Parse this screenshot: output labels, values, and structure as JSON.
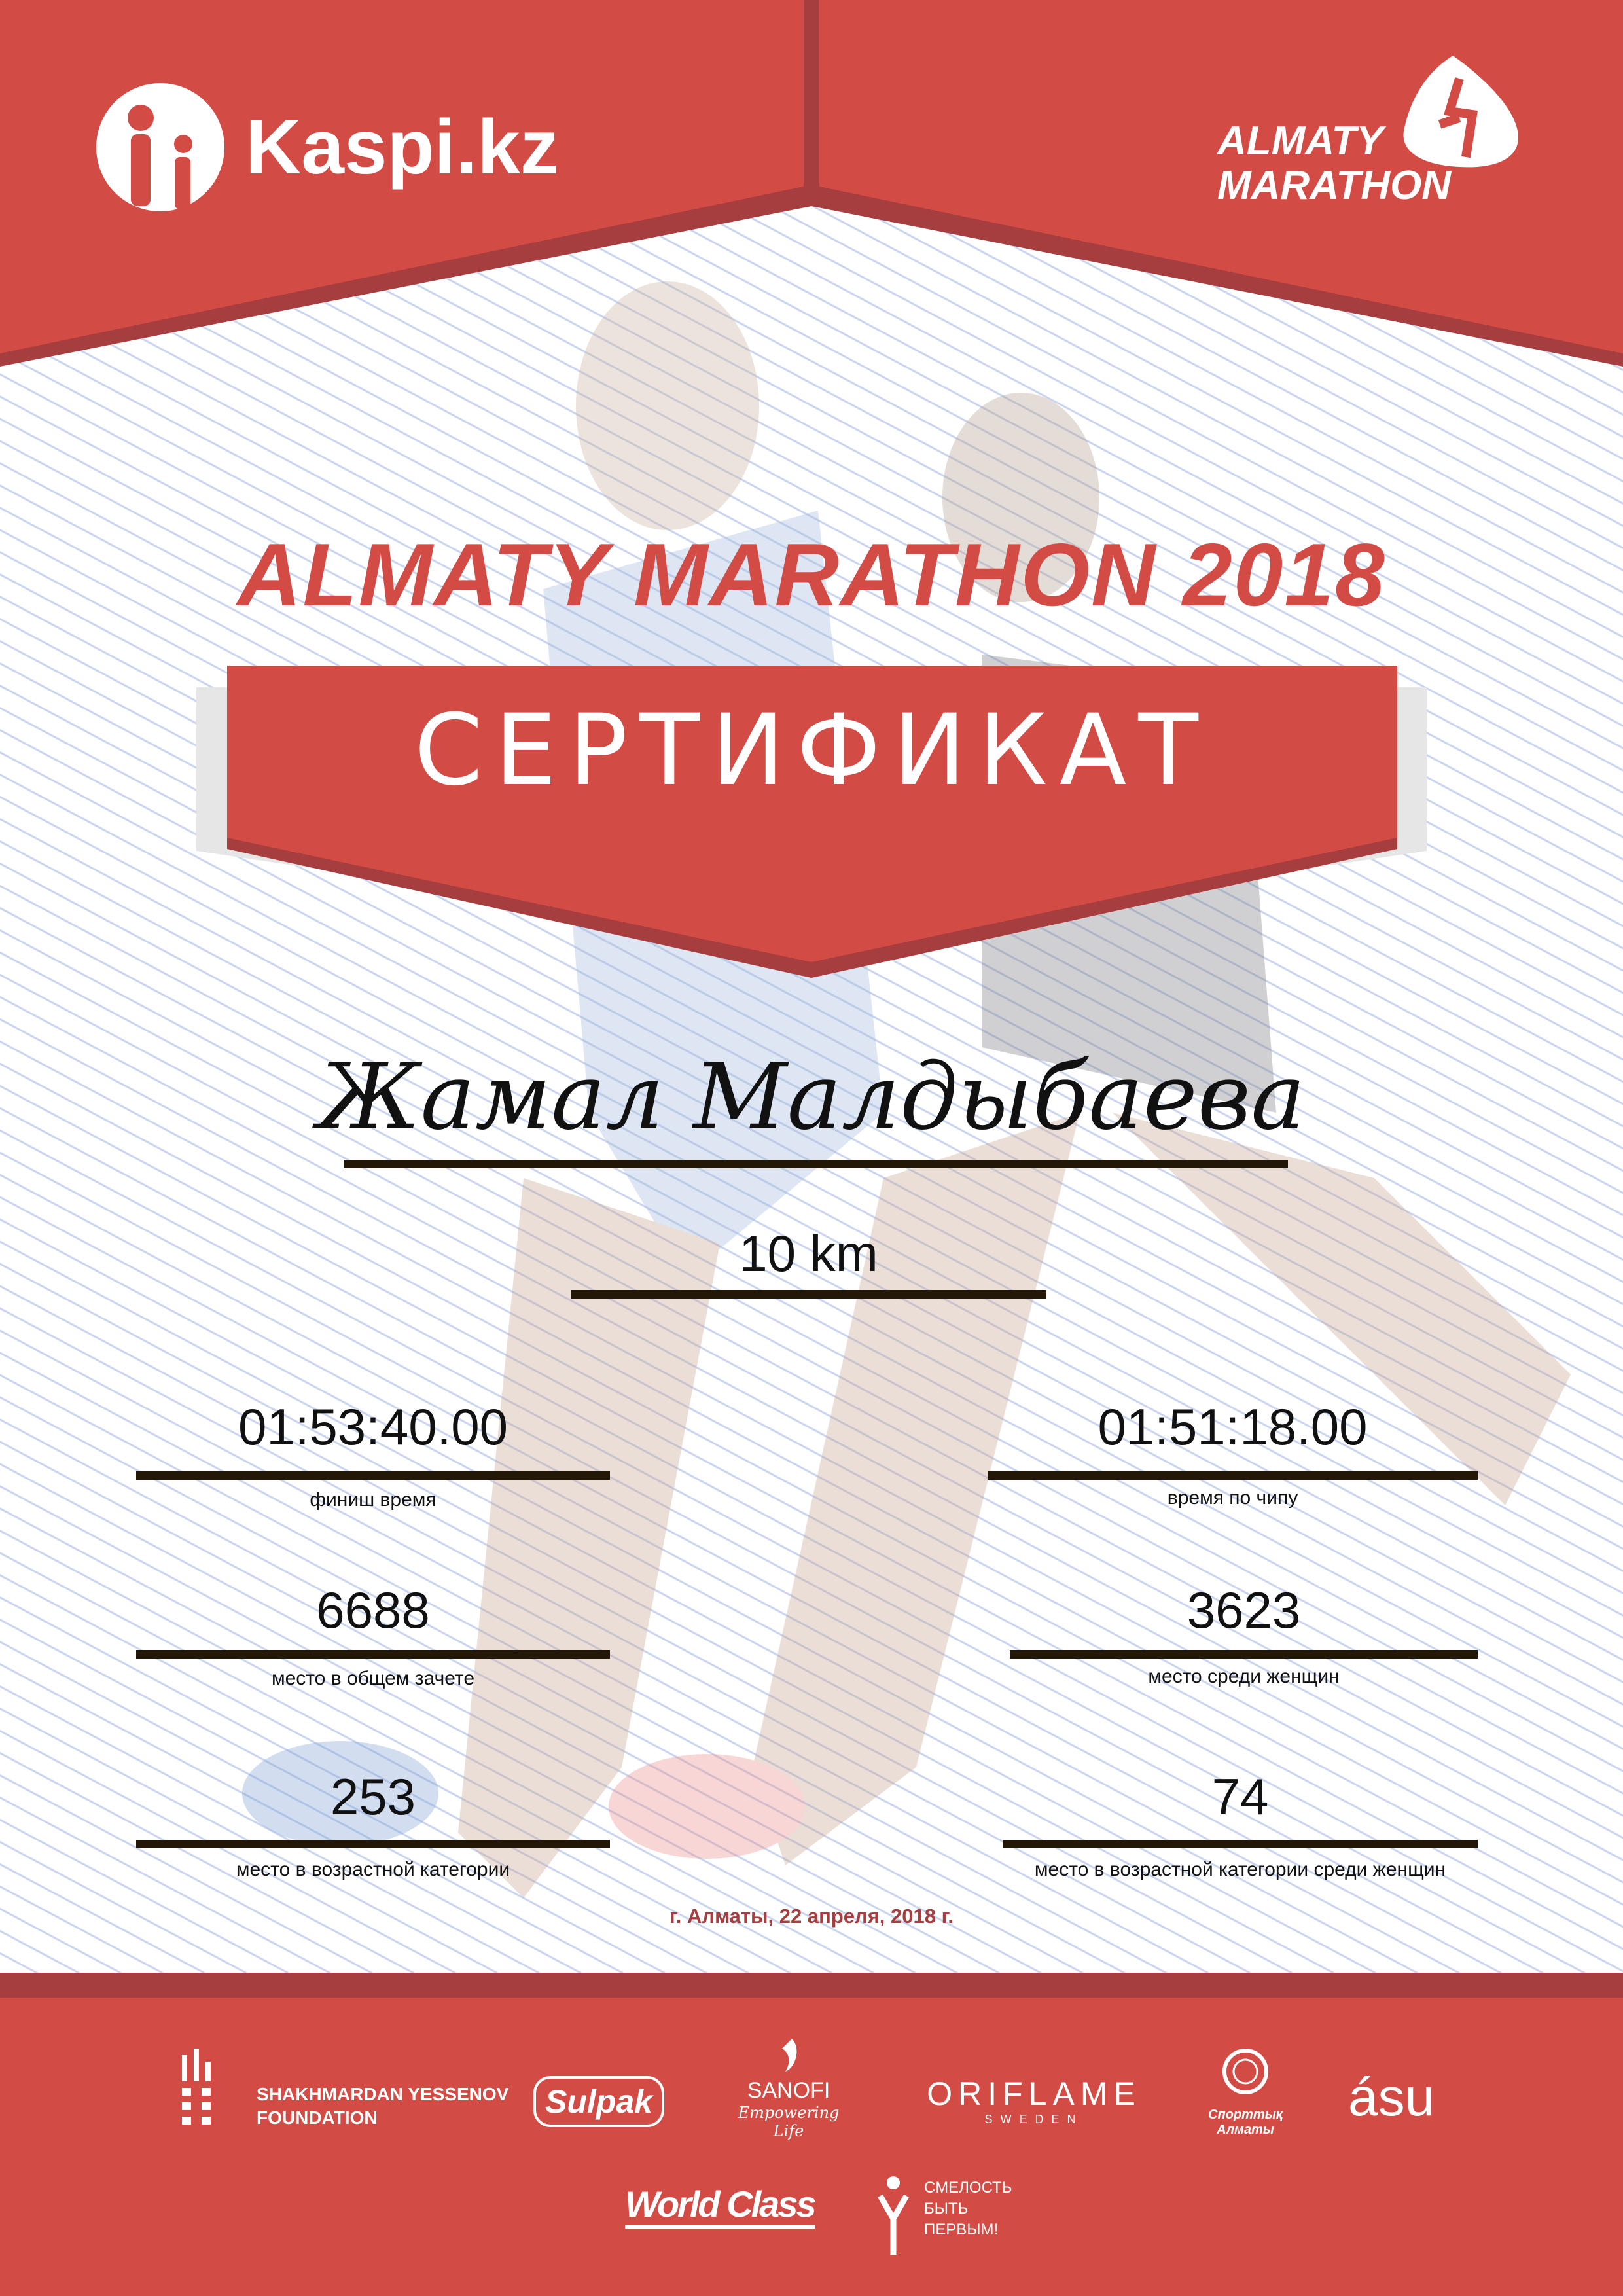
{
  "header": {
    "sponsor_logo": "Kaspi.kz",
    "event_logo_line1": "ALMATY",
    "event_logo_line2": "MARATHON"
  },
  "colors": {
    "brand_red": "#D34B45",
    "dark_red": "#A63D3F",
    "line": "#231707"
  },
  "title": "ALMATY MARATHON 2018",
  "banner": "СЕРТИФИКАТ",
  "participant": {
    "name": "Жамал Малдыбаева",
    "distance": "10 km"
  },
  "results": [
    {
      "value": "01:53:40.00",
      "label": "финиш время"
    },
    {
      "value": "01:51:18.00",
      "label": "время по чипу"
    },
    {
      "value": "6688",
      "label": "место в общем зачете"
    },
    {
      "value": "3623",
      "label": "место среди женщин"
    },
    {
      "value": "253",
      "label": "место в возрастной категории"
    },
    {
      "value": "74",
      "label": "место в возрастной категории среди женщин"
    }
  ],
  "date": "г. Алматы, 22 апреля, 2018 г.",
  "partners": {
    "yessenov_line1": "SHAKHMARDAN YESSENOV",
    "yessenov_line2": "FOUNDATION",
    "sulpak": "Sulpak",
    "sanofi": "SANOFI",
    "sanofi_tagline": "Empowering Life",
    "oriflame": "ORIFLAME",
    "oriflame_sub": "SWEDEN",
    "sport_almaty": "Спорттық Алматы",
    "asu": "ásu",
    "worldclass": "World Class",
    "fund_line1": "СМЕЛОСТЬ",
    "fund_line2": "БЫТЬ",
    "fund_line3": "ПЕРВЫМ!"
  }
}
